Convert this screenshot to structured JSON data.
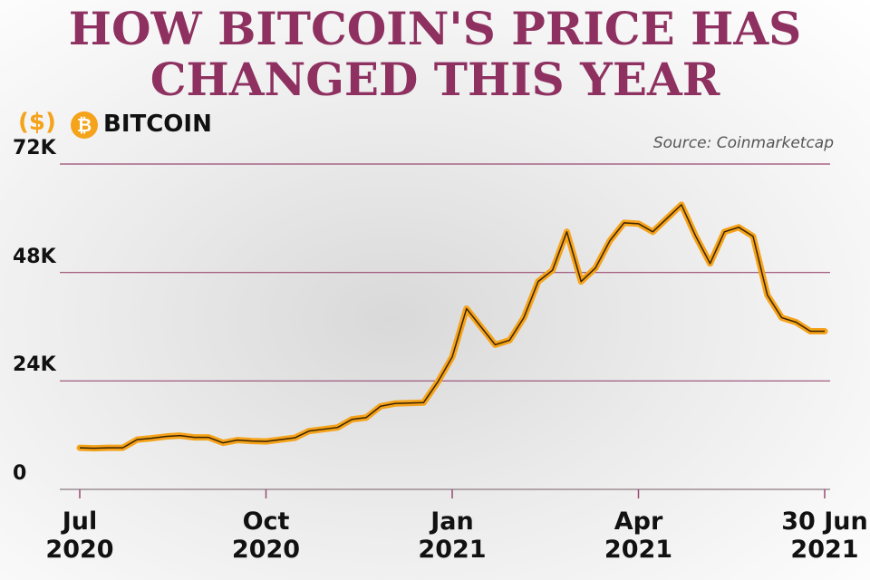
{
  "chart_data": {
    "type": "line",
    "title": "HOW BITCOIN'S PRICE HAS CHANGED THIS YEAR",
    "y_label": "($)",
    "source": "Source: Coinmarketcap",
    "categories": [
      "Jul\n2020",
      null,
      null,
      null,
      null,
      null,
      null,
      null,
      null,
      null,
      null,
      null,
      null,
      "Oct\n2020",
      null,
      null,
      null,
      null,
      null,
      null,
      null,
      null,
      null,
      null,
      null,
      null,
      "Jan\n2021",
      null,
      null,
      null,
      null,
      null,
      null,
      null,
      null,
      null,
      null,
      null,
      null,
      "Apr\n2021",
      null,
      null,
      null,
      null,
      null,
      null,
      null,
      null,
      null,
      null,
      null,
      null,
      "30 Jun\n2021"
    ],
    "series": [
      {
        "name": "BITCOIN",
        "color": "#f5a31a",
        "values": [
          9200,
          9100,
          9200,
          9200,
          11000,
          11300,
          11700,
          11900,
          11500,
          11500,
          10300,
          10900,
          10700,
          10600,
          11000,
          11400,
          12900,
          13300,
          13700,
          15500,
          15900,
          18400,
          19000,
          19100,
          19200,
          23800,
          29300,
          40000,
          36000,
          32000,
          33000,
          38000,
          46000,
          48500,
          57000,
          46000,
          49000,
          55000,
          59000,
          58800,
          57000,
          60000,
          63000,
          56000,
          50000,
          57000,
          58000,
          56000,
          43000,
          38000,
          37000,
          35000,
          35000
        ]
      }
    ],
    "ylim": [
      0,
      72000
    ],
    "yticks": [
      0,
      {
        "value": 24000,
        "label": "24K"
      },
      {
        "value": 48000,
        "label": "48K"
      },
      {
        "value": 72000,
        "label": "72K"
      }
    ],
    "grid": true
  }
}
